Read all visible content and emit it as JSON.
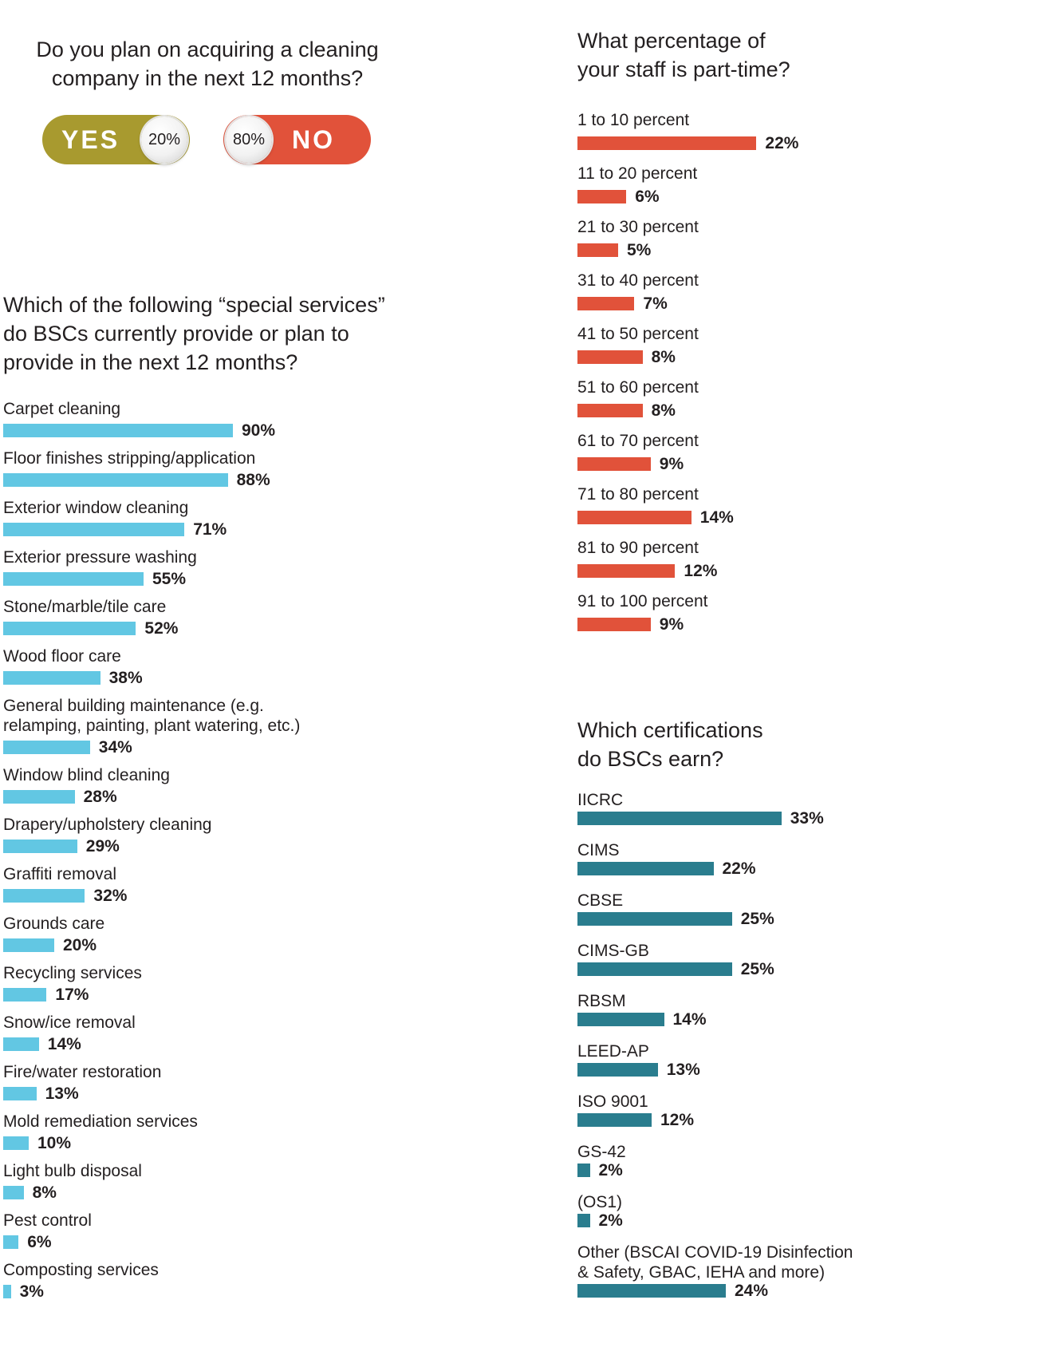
{
  "acquire": {
    "title_line1": "Do you plan on acquiring a cleaning",
    "title_line2": "company in the next 12 months?",
    "yes_label": "YES",
    "yes_value": "20%",
    "no_label": "NO",
    "no_value": "80%"
  },
  "special_services": {
    "title_line1": "Which of the following “special services”",
    "title_line2": "do BSCs currently provide or plan to",
    "title_line3": "provide in the next 12 months?"
  },
  "part_time": {
    "title_line1": "What percentage of",
    "title_line2": "your staff is part-time?"
  },
  "certs": {
    "title_line1": "Which certifications",
    "title_line2": "do BSCs earn?"
  },
  "colors": {
    "yes": "#a89a2f",
    "no": "#e1523a",
    "services_bar": "#62c7e3",
    "parttime_bar": "#e1523a",
    "cert_bar": "#2a7d8e"
  },
  "chart_data": [
    {
      "type": "bar",
      "orientation": "horizontal",
      "title": "Do you plan on acquiring a cleaning company in the next 12 months?",
      "categories": [
        "YES",
        "NO"
      ],
      "values": [
        20,
        80
      ],
      "labels": [
        "20%",
        "80%"
      ]
    },
    {
      "type": "bar",
      "orientation": "horizontal",
      "title": "Which of the following “special services” do BSCs currently provide or plan to provide in the next 12 months?",
      "categories": [
        [
          "Carpet cleaning"
        ],
        [
          "Floor finishes stripping/application"
        ],
        [
          "Exterior window cleaning"
        ],
        [
          "Exterior pressure washing"
        ],
        [
          "Stone/marble/tile care"
        ],
        [
          "Wood floor care"
        ],
        [
          "General building maintenance (e.g.",
          "relamping, painting, plant watering, etc.)"
        ],
        [
          "Window blind cleaning"
        ],
        [
          "Drapery/upholstery cleaning"
        ],
        [
          "Graffiti removal"
        ],
        [
          "Grounds care"
        ],
        [
          "Recycling services"
        ],
        [
          "Snow/ice removal"
        ],
        [
          "Fire/water restoration"
        ],
        [
          "Mold remediation services"
        ],
        [
          "Light bulb disposal"
        ],
        [
          "Pest control"
        ],
        [
          "Composting services"
        ]
      ],
      "values": [
        90,
        88,
        71,
        55,
        52,
        38,
        34,
        28,
        29,
        32,
        20,
        17,
        14,
        13,
        10,
        8,
        6,
        3
      ],
      "labels": [
        "90%",
        "88%",
        "71%",
        "55%",
        "52%",
        "38%",
        "34%",
        "28%",
        "29%",
        "32%",
        "20%",
        "17%",
        "14%",
        "13%",
        "10%",
        "8%",
        "6%",
        "3%"
      ]
    },
    {
      "type": "bar",
      "orientation": "horizontal",
      "title": "What percentage of your staff is part-time?",
      "categories": [
        [
          "1 to 10 percent"
        ],
        [
          "11 to 20 percent"
        ],
        [
          "21 to 30 percent"
        ],
        [
          "31 to 40 percent"
        ],
        [
          "41 to 50 percent"
        ],
        [
          "51 to 60 percent"
        ],
        [
          "61 to 70 percent"
        ],
        [
          "71 to 80 percent"
        ],
        [
          "81 to 90 percent"
        ],
        [
          "91 to 100 percent"
        ]
      ],
      "values": [
        22,
        6,
        5,
        7,
        8,
        8,
        9,
        14,
        12,
        9
      ],
      "labels": [
        "22%",
        "6%",
        "5%",
        "7%",
        "8%",
        "8%",
        "9%",
        "14%",
        "12%",
        "9%"
      ]
    },
    {
      "type": "bar",
      "orientation": "horizontal",
      "title": "Which certifications do BSCs earn?",
      "categories": [
        [
          "IICRC"
        ],
        [
          "CIMS"
        ],
        [
          "CBSE"
        ],
        [
          "CIMS-GB"
        ],
        [
          "RBSM"
        ],
        [
          "LEED-AP"
        ],
        [
          "ISO 9001"
        ],
        [
          "GS-42"
        ],
        [
          "(OS1)"
        ],
        [
          "Other (BSCAI COVID-19 Disinfection",
          "& Safety, GBAC, IEHA and more)"
        ]
      ],
      "values": [
        33,
        22,
        25,
        25,
        14,
        13,
        12,
        2,
        2,
        24
      ],
      "labels": [
        "33%",
        "22%",
        "25%",
        "25%",
        "14%",
        "13%",
        "12%",
        "2%",
        "2%",
        "24%"
      ]
    }
  ]
}
